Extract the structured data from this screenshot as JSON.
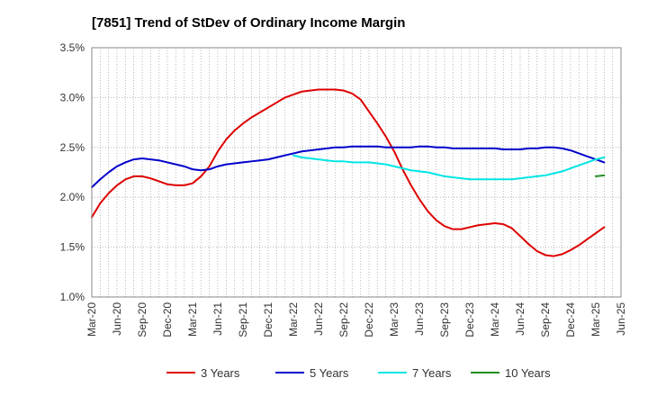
{
  "chart_data": {
    "type": "line",
    "title": "[7851]  Trend of StDev of Ordinary Income Margin",
    "xlabel": "",
    "ylabel": "",
    "ylim": [
      1.0,
      3.5
    ],
    "yticks": [
      "1.0%",
      "1.5%",
      "2.0%",
      "2.5%",
      "3.0%",
      "3.5%"
    ],
    "yticks_values": [
      1.0,
      1.5,
      2.0,
      2.5,
      3.0,
      3.5
    ],
    "xticks": [
      "Mar-20",
      "Jun-20",
      "Sep-20",
      "Dec-20",
      "Mar-21",
      "Jun-21",
      "Sep-21",
      "Dec-21",
      "Mar-22",
      "Jun-22",
      "Sep-22",
      "Dec-22",
      "Mar-23",
      "Jun-23",
      "Sep-23",
      "Dec-23",
      "Mar-24",
      "Jun-24",
      "Sep-24",
      "Dec-24",
      "Mar-25",
      "Jun-25"
    ],
    "grid": true,
    "legend_position": "bottom",
    "series": [
      {
        "name": "3 Years",
        "color": "#dd0000",
        "points": [
          [
            "Mar-20",
            1.8
          ],
          [
            "Apr-20",
            1.94
          ],
          [
            "May-20",
            2.04
          ],
          [
            "Jun-20",
            2.12
          ],
          [
            "Jul-20",
            2.18
          ],
          [
            "Aug-20",
            2.21
          ],
          [
            "Sep-20",
            2.21
          ],
          [
            "Oct-20",
            2.19
          ],
          [
            "Nov-20",
            2.16
          ],
          [
            "Dec-20",
            2.13
          ],
          [
            "Jan-21",
            2.12
          ],
          [
            "Feb-21",
            2.12
          ],
          [
            "Mar-21",
            2.14
          ],
          [
            "Apr-21",
            2.21
          ],
          [
            "May-21",
            2.31
          ],
          [
            "Jun-21",
            2.46
          ],
          [
            "Jul-21",
            2.58
          ],
          [
            "Aug-21",
            2.67
          ],
          [
            "Sep-21",
            2.74
          ],
          [
            "Oct-21",
            2.8
          ],
          [
            "Nov-21",
            2.85
          ],
          [
            "Dec-21",
            2.9
          ],
          [
            "Jan-22",
            2.95
          ],
          [
            "Feb-22",
            3.0
          ],
          [
            "Mar-22",
            3.03
          ],
          [
            "Apr-22",
            3.06
          ],
          [
            "May-22",
            3.07
          ],
          [
            "Jun-22",
            3.08
          ],
          [
            "Jul-22",
            3.08
          ],
          [
            "Aug-22",
            3.08
          ],
          [
            "Sep-22",
            3.07
          ],
          [
            "Oct-22",
            3.04
          ],
          [
            "Nov-22",
            2.98
          ],
          [
            "Dec-22",
            2.86
          ],
          [
            "Jan-23",
            2.74
          ],
          [
            "Feb-23",
            2.61
          ],
          [
            "Mar-23",
            2.46
          ],
          [
            "Apr-23",
            2.28
          ],
          [
            "May-23",
            2.12
          ],
          [
            "Jun-23",
            1.98
          ],
          [
            "Jul-23",
            1.86
          ],
          [
            "Aug-23",
            1.77
          ],
          [
            "Sep-23",
            1.71
          ],
          [
            "Oct-23",
            1.68
          ],
          [
            "Nov-23",
            1.68
          ],
          [
            "Dec-23",
            1.7
          ],
          [
            "Jan-24",
            1.72
          ],
          [
            "Feb-24",
            1.73
          ],
          [
            "Mar-24",
            1.74
          ],
          [
            "Apr-24",
            1.73
          ],
          [
            "May-24",
            1.69
          ],
          [
            "Jun-24",
            1.61
          ],
          [
            "Jul-24",
            1.53
          ],
          [
            "Aug-24",
            1.46
          ],
          [
            "Sep-24",
            1.42
          ],
          [
            "Oct-24",
            1.41
          ],
          [
            "Nov-24",
            1.43
          ],
          [
            "Dec-24",
            1.47
          ],
          [
            "Jan-25",
            1.52
          ],
          [
            "Feb-25",
            1.58
          ],
          [
            "Mar-25",
            1.64
          ],
          [
            "Apr-25",
            1.7
          ]
        ]
      },
      {
        "name": "5 Years",
        "color": "#0000cc",
        "points": [
          [
            "Mar-20",
            2.1
          ],
          [
            "Apr-20",
            2.18
          ],
          [
            "May-20",
            2.25
          ],
          [
            "Jun-20",
            2.31
          ],
          [
            "Jul-20",
            2.35
          ],
          [
            "Aug-20",
            2.38
          ],
          [
            "Sep-20",
            2.39
          ],
          [
            "Oct-20",
            2.38
          ],
          [
            "Nov-20",
            2.37
          ],
          [
            "Dec-20",
            2.35
          ],
          [
            "Jan-21",
            2.33
          ],
          [
            "Feb-21",
            2.31
          ],
          [
            "Mar-21",
            2.28
          ],
          [
            "Apr-21",
            2.27
          ],
          [
            "May-21",
            2.28
          ],
          [
            "Jun-21",
            2.31
          ],
          [
            "Jul-21",
            2.33
          ],
          [
            "Aug-21",
            2.34
          ],
          [
            "Sep-21",
            2.35
          ],
          [
            "Oct-21",
            2.36
          ],
          [
            "Nov-21",
            2.37
          ],
          [
            "Dec-21",
            2.38
          ],
          [
            "Jan-22",
            2.4
          ],
          [
            "Feb-22",
            2.42
          ],
          [
            "Mar-22",
            2.44
          ],
          [
            "Apr-22",
            2.46
          ],
          [
            "May-22",
            2.47
          ],
          [
            "Jun-22",
            2.48
          ],
          [
            "Jul-22",
            2.49
          ],
          [
            "Aug-22",
            2.5
          ],
          [
            "Sep-22",
            2.5
          ],
          [
            "Oct-22",
            2.51
          ],
          [
            "Nov-22",
            2.51
          ],
          [
            "Dec-22",
            2.51
          ],
          [
            "Jan-23",
            2.51
          ],
          [
            "Feb-23",
            2.5
          ],
          [
            "Mar-23",
            2.5
          ],
          [
            "Apr-23",
            2.5
          ],
          [
            "May-23",
            2.5
          ],
          [
            "Jun-23",
            2.51
          ],
          [
            "Jul-23",
            2.51
          ],
          [
            "Aug-23",
            2.5
          ],
          [
            "Sep-23",
            2.5
          ],
          [
            "Oct-23",
            2.49
          ],
          [
            "Nov-23",
            2.49
          ],
          [
            "Dec-23",
            2.49
          ],
          [
            "Jan-24",
            2.49
          ],
          [
            "Feb-24",
            2.49
          ],
          [
            "Mar-24",
            2.49
          ],
          [
            "Apr-24",
            2.48
          ],
          [
            "May-24",
            2.48
          ],
          [
            "Jun-24",
            2.48
          ],
          [
            "Jul-24",
            2.49
          ],
          [
            "Aug-24",
            2.49
          ],
          [
            "Sep-24",
            2.5
          ],
          [
            "Oct-24",
            2.5
          ],
          [
            "Nov-24",
            2.49
          ],
          [
            "Dec-24",
            2.47
          ],
          [
            "Jan-25",
            2.44
          ],
          [
            "Feb-25",
            2.41
          ],
          [
            "Mar-25",
            2.38
          ],
          [
            "Apr-25",
            2.35
          ]
        ]
      },
      {
        "name": "7 Years",
        "color": "#00e5e5",
        "points": [
          [
            "Mar-22",
            2.42
          ],
          [
            "Apr-22",
            2.4
          ],
          [
            "May-22",
            2.39
          ],
          [
            "Jun-22",
            2.38
          ],
          [
            "Jul-22",
            2.37
          ],
          [
            "Aug-22",
            2.36
          ],
          [
            "Sep-22",
            2.36
          ],
          [
            "Oct-22",
            2.35
          ],
          [
            "Nov-22",
            2.35
          ],
          [
            "Dec-22",
            2.35
          ],
          [
            "Jan-23",
            2.34
          ],
          [
            "Feb-23",
            2.33
          ],
          [
            "Mar-23",
            2.31
          ],
          [
            "Apr-23",
            2.29
          ],
          [
            "May-23",
            2.27
          ],
          [
            "Jun-23",
            2.26
          ],
          [
            "Jul-23",
            2.25
          ],
          [
            "Aug-23",
            2.23
          ],
          [
            "Sep-23",
            2.21
          ],
          [
            "Oct-23",
            2.2
          ],
          [
            "Nov-23",
            2.19
          ],
          [
            "Dec-23",
            2.18
          ],
          [
            "Jan-24",
            2.18
          ],
          [
            "Feb-24",
            2.18
          ],
          [
            "Mar-24",
            2.18
          ],
          [
            "Apr-24",
            2.18
          ],
          [
            "May-24",
            2.18
          ],
          [
            "Jun-24",
            2.19
          ],
          [
            "Jul-24",
            2.2
          ],
          [
            "Aug-24",
            2.21
          ],
          [
            "Sep-24",
            2.22
          ],
          [
            "Oct-24",
            2.24
          ],
          [
            "Nov-24",
            2.26
          ],
          [
            "Dec-24",
            2.29
          ],
          [
            "Jan-25",
            2.32
          ],
          [
            "Feb-25",
            2.35
          ],
          [
            "Mar-25",
            2.38
          ],
          [
            "Apr-25",
            2.4
          ]
        ]
      },
      {
        "name": "10 Years",
        "color": "#228b22",
        "points": [
          [
            "Mar-25",
            2.21
          ],
          [
            "Apr-25",
            2.22
          ]
        ]
      }
    ]
  }
}
